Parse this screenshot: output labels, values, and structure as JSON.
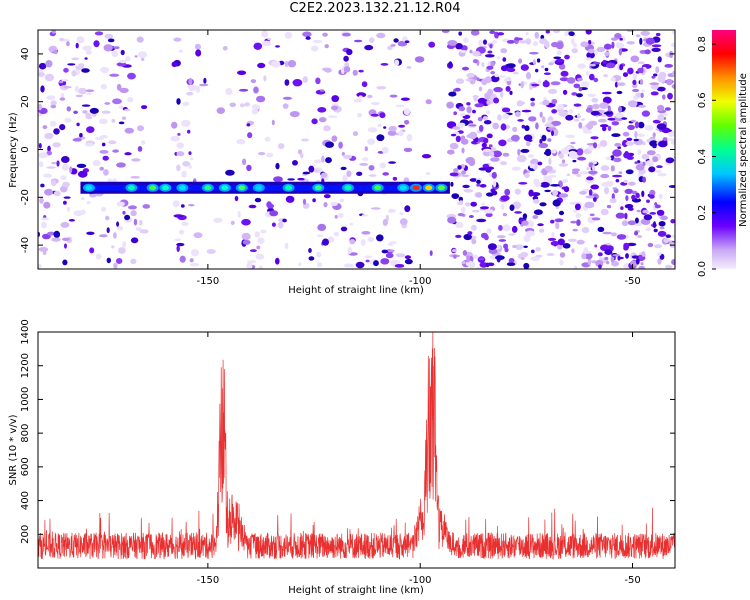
{
  "title": "C2E2.2023.132.21.12.R04",
  "colors": {
    "snr_line": "#e83030",
    "band_dark": "#1a00b0"
  },
  "chart_data": [
    {
      "type": "heatmap",
      "xlabel": "Height of straight line (km)",
      "ylabel": "Frequency (Hz)",
      "xlim": [
        -190,
        -40
      ],
      "ylim": [
        -50,
        50
      ],
      "x_ticks": [
        -150,
        -100,
        -50
      ],
      "y_ticks": [
        40,
        20,
        0,
        -20,
        -40
      ],
      "colorbar": {
        "label": "Normalized spectral amplitude",
        "range": [
          0,
          0.85
        ],
        "ticks": [
          0.0,
          0.2,
          0.4,
          0.6,
          0.8
        ],
        "colormap": "rainbow"
      },
      "features": {
        "band_frequency_hz": -16,
        "band_x_range": [
          -180,
          -93
        ],
        "dense_noise_x_range": [
          -93,
          -40
        ]
      }
    },
    {
      "type": "line",
      "xlabel": "Height of straight line (km)",
      "ylabel": "SNR (10 * v/v)",
      "xlim": [
        -190,
        -40
      ],
      "ylim": [
        0,
        1400
      ],
      "x_ticks": [
        -150,
        -100,
        -50
      ],
      "y_ticks": [
        200,
        400,
        600,
        800,
        1000,
        1200,
        1400
      ],
      "series": [
        {
          "baseline_approx": 150,
          "peaks": [
            {
              "x": -146.5,
              "y": 1280
            },
            {
              "x": -97,
              "y": 1420
            },
            {
              "x": -98,
              "y": 1250
            }
          ]
        }
      ]
    }
  ]
}
